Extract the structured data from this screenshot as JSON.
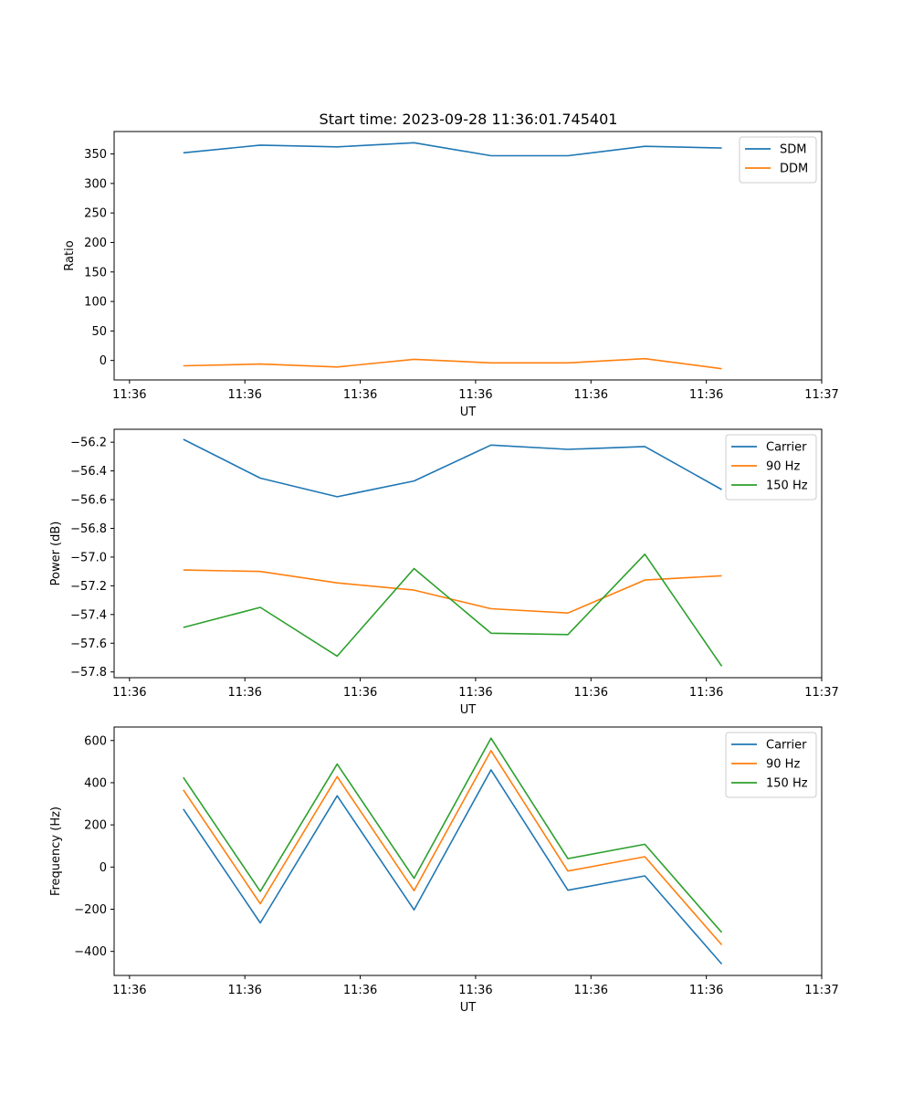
{
  "title": "Start time: 2023-09-28 11:36:01.745401",
  "colors": {
    "blue": "#1f77b4",
    "orange": "#ff7f0e",
    "green": "#2ca02c"
  },
  "chart_data": [
    {
      "type": "line",
      "title": "Start time: 2023-09-28 11:36:01.745401",
      "xlabel": "UT",
      "ylabel": "Ratio",
      "x": [
        1,
        2,
        3,
        4,
        5,
        6,
        7,
        8
      ],
      "xlim": [
        0.1,
        9.3
      ],
      "xticks": [
        0.3,
        1.8,
        3.3,
        4.8,
        6.3,
        7.8,
        9.3
      ],
      "xtick_labels": [
        "11:36",
        "11:36",
        "11:36",
        "11:36",
        "11:36",
        "11:36",
        "11:37"
      ],
      "ylim": [
        -33,
        388
      ],
      "yticks": [
        0,
        50,
        100,
        150,
        200,
        250,
        300,
        350
      ],
      "ytick_labels": [
        "0",
        "50",
        "100",
        "150",
        "200",
        "250",
        "300",
        "350"
      ],
      "legend": "top-right",
      "series": [
        {
          "name": "SDM",
          "color": "#1f77b4",
          "values": [
            352,
            365,
            362,
            369,
            347,
            347,
            363,
            360
          ]
        },
        {
          "name": "DDM",
          "color": "#ff7f0e",
          "values": [
            -9,
            -6,
            -11,
            2,
            -4,
            -4,
            3,
            -14
          ]
        }
      ]
    },
    {
      "type": "line",
      "xlabel": "UT",
      "ylabel": "Power (dB)",
      "x": [
        1,
        2,
        3,
        4,
        5,
        6,
        7,
        8
      ],
      "xlim": [
        0.1,
        9.3
      ],
      "xticks": [
        0.3,
        1.8,
        3.3,
        4.8,
        6.3,
        7.8,
        9.3
      ],
      "xtick_labels": [
        "11:36",
        "11:36",
        "11:36",
        "11:36",
        "11:36",
        "11:36",
        "11:37"
      ],
      "ylim": [
        -57.84,
        -56.11
      ],
      "yticks": [
        -57.8,
        -57.6,
        -57.4,
        -57.2,
        -57.0,
        -56.8,
        -56.6,
        -56.4,
        -56.2
      ],
      "ytick_labels": [
        "−57.8",
        "−57.6",
        "−57.4",
        "−57.2",
        "−57.0",
        "−56.8",
        "−56.6",
        "−56.4",
        "−56.2"
      ],
      "legend": "top-right",
      "series": [
        {
          "name": "Carrier",
          "color": "#1f77b4",
          "values": [
            -56.18,
            -56.45,
            -56.58,
            -56.47,
            -56.22,
            -56.25,
            -56.23,
            -56.53
          ]
        },
        {
          "name": "90 Hz",
          "color": "#ff7f0e",
          "values": [
            -57.09,
            -57.1,
            -57.18,
            -57.23,
            -57.36,
            -57.39,
            -57.16,
            -57.13
          ]
        },
        {
          "name": "150 Hz",
          "color": "#2ca02c",
          "values": [
            -57.49,
            -57.35,
            -57.69,
            -57.08,
            -57.53,
            -57.54,
            -56.98,
            -57.76
          ]
        }
      ]
    },
    {
      "type": "line",
      "xlabel": "UT",
      "ylabel": "Frequency (Hz)",
      "x": [
        1,
        2,
        3,
        4,
        5,
        6,
        7,
        8
      ],
      "xlim": [
        0.1,
        9.3
      ],
      "xticks": [
        0.3,
        1.8,
        3.3,
        4.8,
        6.3,
        7.8,
        9.3
      ],
      "xtick_labels": [
        "11:36",
        "11:36",
        "11:36",
        "11:36",
        "11:36",
        "11:36",
        "11:37"
      ],
      "ylim": [
        -514,
        664
      ],
      "yticks": [
        -400,
        -200,
        0,
        200,
        400,
        600
      ],
      "ytick_labels": [
        "−400",
        "−200",
        "0",
        "200",
        "400",
        "600"
      ],
      "legend": "top-right",
      "series": [
        {
          "name": "Carrier",
          "color": "#1f77b4",
          "values": [
            275,
            -265,
            338,
            -203,
            461,
            -110,
            -42,
            -460
          ]
        },
        {
          "name": "90 Hz",
          "color": "#ff7f0e",
          "values": [
            366,
            -174,
            429,
            -112,
            552,
            -19,
            49,
            -369
          ]
        },
        {
          "name": "150 Hz",
          "color": "#2ca02c",
          "values": [
            425,
            -115,
            488,
            -53,
            611,
            40,
            108,
            -310
          ]
        }
      ]
    }
  ]
}
